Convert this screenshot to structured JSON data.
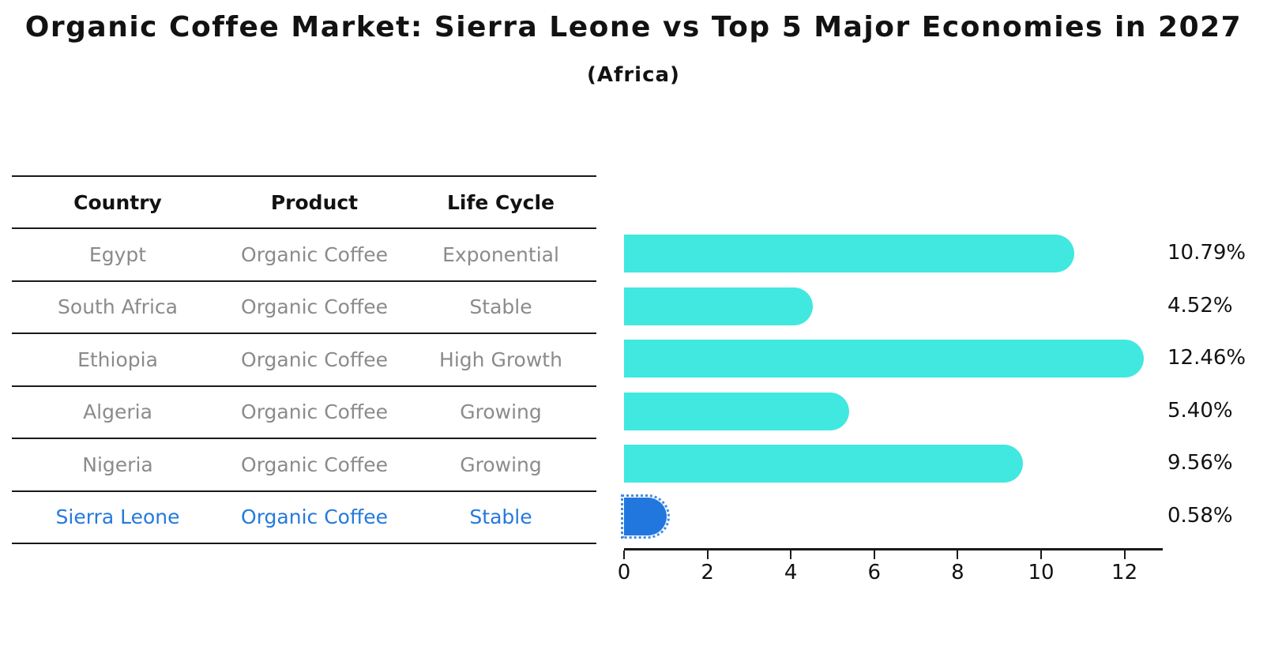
{
  "title": "Organic Coffee Market: Sierra Leone vs Top 5 Major Economies in 2027",
  "subtitle": "(Africa)",
  "table": {
    "headers": [
      "Country",
      "Product",
      "Life Cycle"
    ],
    "rows": [
      {
        "country": "Egypt",
        "product": "Organic Coffee",
        "life_cycle": "Exponential",
        "highlight": false
      },
      {
        "country": "South Africa",
        "product": "Organic Coffee",
        "life_cycle": "Stable",
        "highlight": false
      },
      {
        "country": "Ethiopia",
        "product": "Organic Coffee",
        "life_cycle": "High Growth",
        "highlight": false
      },
      {
        "country": "Algeria",
        "product": "Organic Coffee",
        "life_cycle": "Growing",
        "highlight": false
      },
      {
        "country": "Nigeria",
        "product": "Organic Coffee",
        "life_cycle": "Growing",
        "highlight": false
      },
      {
        "country": "Sierra Leone",
        "product": "Organic Coffee",
        "life_cycle": "Stable",
        "highlight": true
      }
    ]
  },
  "chart_data": {
    "type": "bar",
    "orientation": "horizontal",
    "title": "Organic Coffee Market: Sierra Leone vs Top 5 Major Economies in 2027",
    "subtitle": "(Africa)",
    "categories": [
      "Egypt",
      "South Africa",
      "Ethiopia",
      "Algeria",
      "Nigeria",
      "Sierra Leone"
    ],
    "values": [
      10.79,
      4.52,
      12.46,
      5.4,
      9.56,
      0.58
    ],
    "value_labels": [
      "10.79%",
      "4.52%",
      "12.46%",
      "5.40%",
      "9.56%",
      "0.58%"
    ],
    "xlabel": "",
    "ylabel": "",
    "xlim": [
      0,
      13.1
    ],
    "xticks": [
      0,
      2,
      4,
      6,
      8,
      10,
      12
    ],
    "grid": false,
    "legend": false,
    "highlight_category": "Sierra Leone",
    "bar_color": "#40E8E0",
    "highlight_bar_color": "#2277DF",
    "highlight_text_color": "#2579DD",
    "body_text_color": "#8b8b8b"
  }
}
